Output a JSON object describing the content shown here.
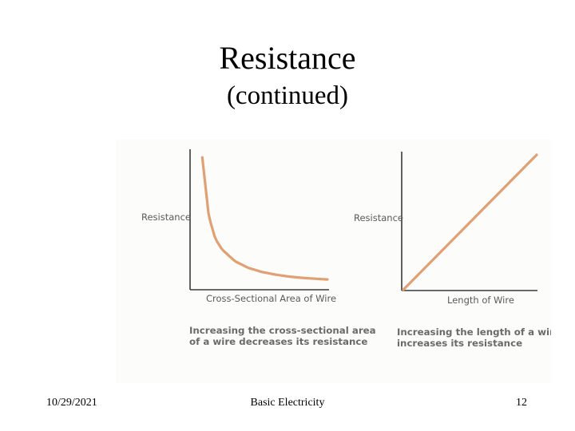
{
  "slide": {
    "title": "Resistance",
    "subtitle": "(continued)",
    "footer_date": "10/29/2021",
    "footer_center": "Basic Electricity",
    "page_number": "12"
  },
  "colors": {
    "curve": "#e0a074",
    "axis": "#3a3a3a",
    "label": "#5a5a5a",
    "caption": "#6a6a6a"
  },
  "chart_data": [
    {
      "type": "line",
      "ylabel": "Resistance",
      "xlabel": "Cross-Sectional Area of Wire",
      "caption_lines": [
        "Increasing the cross-sectional area",
        "of a wire decreases its resistance"
      ],
      "relationship": "inverse",
      "series": [
        {
          "x": [
            0.05,
            0.1,
            0.15,
            0.2,
            0.3,
            0.4,
            0.5,
            0.6,
            0.7,
            0.8,
            0.9,
            1.0
          ],
          "y": [
            1.0,
            0.55,
            0.38,
            0.3,
            0.21,
            0.16,
            0.13,
            0.11,
            0.095,
            0.085,
            0.078,
            0.072
          ]
        }
      ],
      "xlim": [
        0,
        1
      ],
      "ylim": [
        0,
        1.05
      ],
      "grid": false
    },
    {
      "type": "line",
      "ylabel": "Resistance",
      "xlabel": "Length of Wire",
      "caption_lines": [
        "Increasing the length of a wire",
        "increases its resistance"
      ],
      "relationship": "direct",
      "series": [
        {
          "x": [
            0,
            1.0
          ],
          "y": [
            0,
            1.0
          ]
        }
      ],
      "xlim": [
        0,
        1
      ],
      "ylim": [
        0,
        1.0
      ],
      "grid": false
    }
  ]
}
